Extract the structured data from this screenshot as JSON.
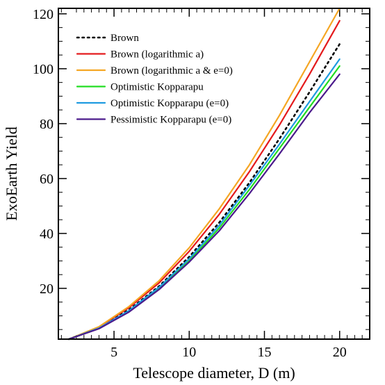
{
  "chart_data": {
    "type": "line",
    "xlabel": "Telescope diameter, D (m)",
    "ylabel": "ExoEarth Yield",
    "xlim": [
      1.3,
      22
    ],
    "ylim": [
      1.5,
      122
    ],
    "xticks": [
      5,
      10,
      15,
      20
    ],
    "yticks": [
      20,
      40,
      60,
      80,
      100,
      120
    ],
    "x_minor_ticks": [
      1.5,
      2.5,
      3,
      3.5,
      4,
      4.5,
      5.5,
      6,
      6.5,
      7,
      7.5,
      8,
      8.5,
      9,
      9.5,
      10.5,
      11,
      11.5,
      12,
      12.5,
      13,
      13.5,
      14,
      14.5,
      15.5,
      16,
      16.5,
      17,
      17.5,
      18,
      18.5,
      19,
      19.5,
      20.5,
      21,
      21.5
    ],
    "y_minor_ticks": [
      5,
      10,
      15,
      25,
      30,
      35,
      45,
      50,
      55,
      65,
      70,
      75,
      85,
      90,
      95,
      105,
      110,
      115
    ],
    "grid": false,
    "legend_position": "top-left",
    "x": [
      2,
      4,
      6,
      8,
      10,
      12,
      14,
      16,
      18,
      20
    ],
    "series": [
      {
        "name": "Brown",
        "color": "#000000",
        "dash": "dotted",
        "values": [
          1.5,
          5.6,
          12.2,
          20.8,
          31.5,
          44.0,
          58.5,
          74.5,
          91.5,
          109.0
        ]
      },
      {
        "name": "Brown (logarithmic a)",
        "color": "#e41a1c",
        "dash": "solid",
        "values": [
          1.5,
          5.9,
          13.0,
          22.0,
          33.5,
          47.0,
          62.5,
          79.5,
          98.0,
          117.5
        ]
      },
      {
        "name": "Brown (logarithmic a & e=0)",
        "color": "#f5a623",
        "dash": "solid",
        "values": [
          1.5,
          6.0,
          13.4,
          22.8,
          34.8,
          49.0,
          65.0,
          83.0,
          102.5,
          122.0
        ]
      },
      {
        "name": "Optimistic Kopparapu",
        "color": "#22dd22",
        "dash": "solid",
        "values": [
          1.5,
          5.4,
          11.6,
          19.8,
          30.0,
          42.0,
          56.0,
          71.0,
          86.0,
          101.0
        ]
      },
      {
        "name": "Optimistic Kopparapu (e=0)",
        "color": "#1e9be0",
        "dash": "solid",
        "values": [
          1.5,
          5.5,
          11.9,
          20.4,
          30.8,
          43.0,
          57.5,
          72.5,
          88.0,
          103.5
        ]
      },
      {
        "name": "Pessimistic Kopparapu (e=0)",
        "color": "#4b1a8c",
        "dash": "solid",
        "values": [
          1.5,
          5.3,
          11.4,
          19.6,
          29.6,
          41.0,
          54.5,
          69.0,
          84.0,
          98.0
        ]
      }
    ]
  }
}
